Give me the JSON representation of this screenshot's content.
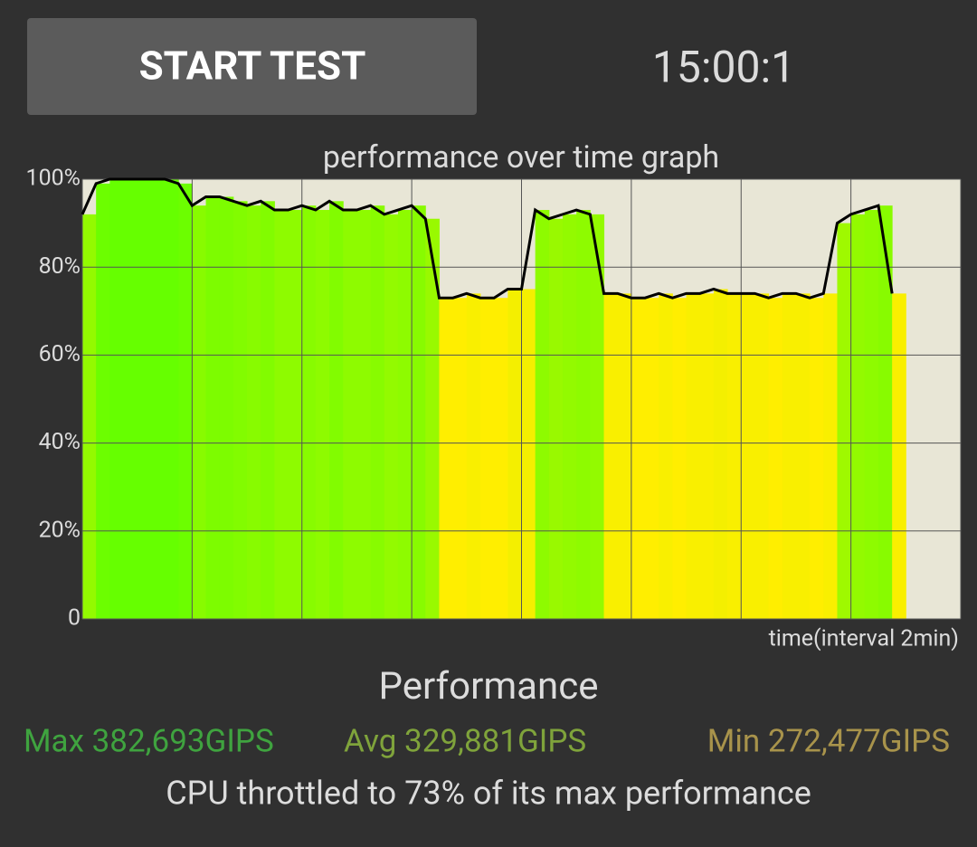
{
  "button": {
    "label": "START TEST"
  },
  "timer": "15:00:1",
  "chart_data": {
    "type": "bar-line",
    "title": "performance over time graph",
    "x_label": "time(interval 2min)",
    "x": [
      0,
      0.25,
      0.5,
      0.75,
      1,
      1.25,
      1.5,
      1.75,
      2,
      2.25,
      2.5,
      2.75,
      3,
      3.25,
      3.5,
      3.75,
      4,
      4.25,
      4.5,
      4.75,
      5,
      5.25,
      5.5,
      5.75,
      6,
      6.25,
      6.5,
      6.75,
      7,
      7.25,
      7.5,
      7.75,
      8,
      8.25,
      8.5,
      8.75,
      9,
      9.25,
      9.5,
      9.75,
      10,
      10.25,
      10.5,
      10.75,
      11,
      11.25,
      11.5,
      11.75,
      12,
      12.25,
      12.5,
      12.75,
      13,
      13.25,
      13.5,
      13.75,
      14,
      14.25,
      14.5,
      14.75
    ],
    "values": [
      92,
      99,
      100,
      100,
      100,
      100,
      100,
      99,
      94,
      96,
      96,
      95,
      94,
      95,
      93,
      93,
      94,
      93,
      95,
      93,
      93,
      94,
      92,
      93,
      94,
      91,
      73,
      73,
      74,
      73,
      73,
      75,
      75,
      93,
      91,
      92,
      93,
      92,
      74,
      74,
      73,
      73,
      74,
      73,
      74,
      74,
      75,
      74,
      74,
      74,
      73,
      74,
      74,
      73,
      74,
      90,
      92,
      93,
      94,
      74
    ],
    "line_color": "#000000",
    "color_high": "#66ff00",
    "color_low": "#ffee00",
    "xlim": [
      0,
      16
    ],
    "xticks": [
      0,
      2,
      4,
      6,
      8,
      10,
      12,
      14,
      16
    ],
    "ylim": [
      0,
      100
    ],
    "yticks": [
      0,
      {
        "value": 20,
        "label": "20%"
      },
      {
        "value": 40,
        "label": "40%"
      },
      {
        "value": 60,
        "label": "60%"
      },
      {
        "value": 80,
        "label": "80%"
      },
      {
        "value": 100,
        "label": "100%"
      }
    ],
    "grid": true
  },
  "stats": {
    "title": "Performance",
    "max": "Max 382,693GIPS",
    "avg": "Avg 329,881GIPS",
    "min": "Min 272,477GIPS",
    "note": "CPU throttled to 73% of its max performance"
  }
}
